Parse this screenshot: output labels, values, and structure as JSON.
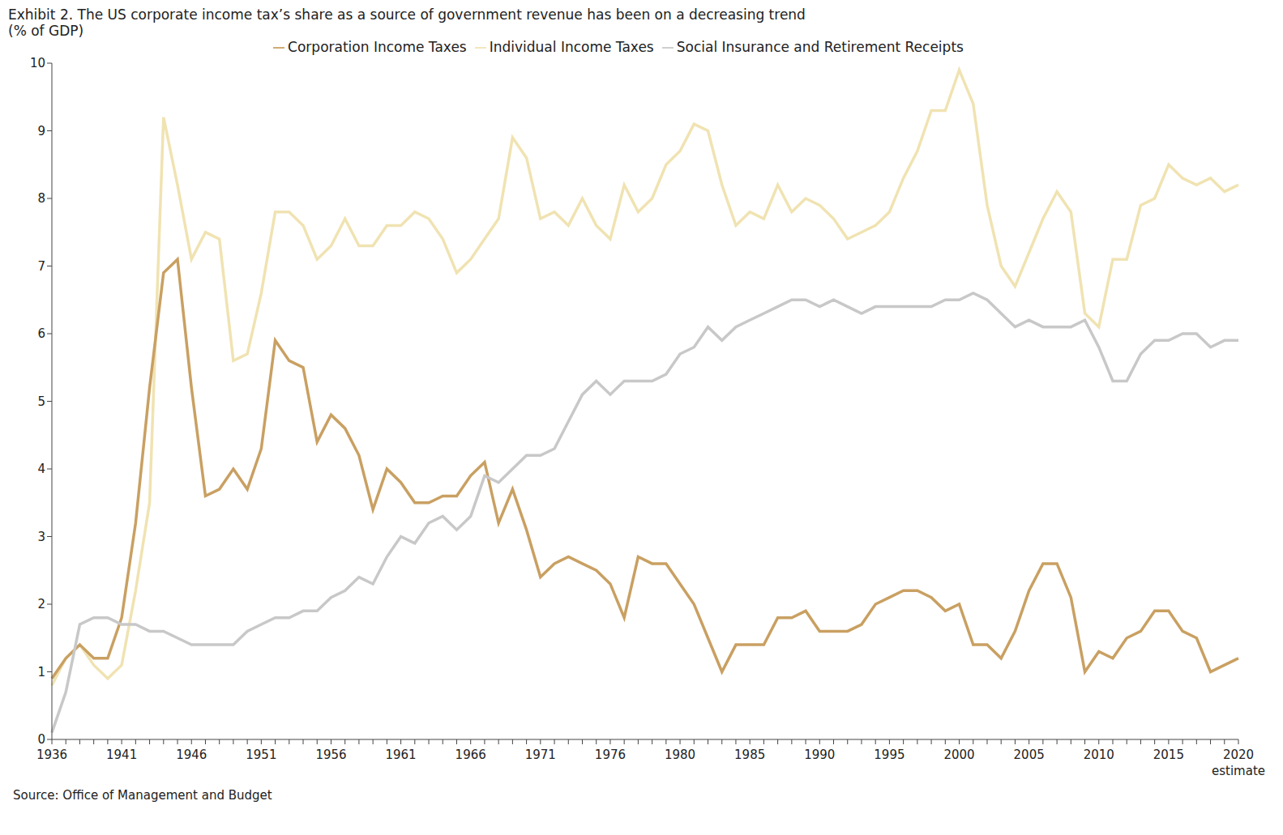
{
  "chart_data": {
    "type": "line",
    "title": "Exhibit 2. The US corporate income tax’s share as a source of government revenue has been on a decreasing trend",
    "subtitle": "(% of GDP)",
    "source": "Source: Office of Management and Budget",
    "annotations": [
      "estimate"
    ],
    "categories": [
      "1936",
      null,
      null,
      null,
      null,
      "1941",
      null,
      null,
      null,
      null,
      "1946",
      null,
      null,
      null,
      null,
      "1951",
      null,
      null,
      null,
      null,
      "1956",
      null,
      null,
      null,
      null,
      "1961",
      null,
      null,
      null,
      null,
      "1966",
      null,
      null,
      null,
      null,
      "1971",
      null,
      null,
      null,
      null,
      "1976",
      null,
      null,
      null,
      null,
      "1980",
      null,
      null,
      null,
      null,
      "1985",
      null,
      null,
      null,
      null,
      "1990",
      null,
      null,
      null,
      null,
      "1995",
      null,
      null,
      null,
      null,
      "2000",
      null,
      null,
      null,
      null,
      "2005",
      null,
      null,
      null,
      null,
      "2010",
      null,
      null,
      null,
      null,
      "2015",
      null,
      null,
      null,
      null,
      "2020"
    ],
    "series": [
      {
        "name": "Individual Income Taxes",
        "color": "#f0e3b2",
        "values": [
          0.8,
          1.2,
          1.4,
          1.1,
          0.9,
          1.1,
          2.2,
          3.5,
          9.2,
          8.2,
          7.1,
          7.5,
          7.4,
          5.6,
          5.7,
          6.6,
          7.8,
          7.8,
          7.6,
          7.1,
          7.3,
          7.7,
          7.3,
          7.3,
          7.6,
          7.6,
          7.8,
          7.7,
          7.4,
          6.9,
          7.1,
          7.4,
          7.7,
          8.9,
          8.6,
          7.7,
          7.8,
          7.6,
          8.0,
          7.6,
          7.4,
          8.2,
          7.8,
          8.0,
          8.5,
          8.7,
          9.1,
          9.0,
          8.2,
          7.6,
          7.8,
          7.7,
          8.2,
          7.8,
          8.0,
          7.9,
          7.7,
          7.4,
          7.5,
          7.6,
          7.8,
          8.3,
          8.7,
          9.3,
          9.3,
          9.9,
          9.4,
          7.9,
          7.0,
          6.7,
          7.2,
          7.7,
          8.1,
          7.8,
          6.3,
          6.1,
          7.1,
          7.1,
          7.9,
          8.0,
          8.5,
          8.3,
          8.2,
          8.3,
          8.1,
          8.2
        ]
      },
      {
        "name": "Corporation Income Taxes",
        "color": "#c9a062",
        "values": [
          0.9,
          1.2,
          1.4,
          1.2,
          1.2,
          1.8,
          3.2,
          5.2,
          6.9,
          7.1,
          5.2,
          3.6,
          3.7,
          4.0,
          3.7,
          4.3,
          5.9,
          5.6,
          5.5,
          4.4,
          4.8,
          4.6,
          4.2,
          3.4,
          4.0,
          3.8,
          3.5,
          3.5,
          3.6,
          3.6,
          3.9,
          4.1,
          3.2,
          3.7,
          3.1,
          2.4,
          2.6,
          2.7,
          2.6,
          2.5,
          2.3,
          1.8,
          2.7,
          2.6,
          2.6,
          2.3,
          2.0,
          1.5,
          1.0,
          1.4,
          1.4,
          1.4,
          1.8,
          1.8,
          1.9,
          1.6,
          1.6,
          1.6,
          1.7,
          2.0,
          2.1,
          2.2,
          2.2,
          2.1,
          1.9,
          2.0,
          1.4,
          1.4,
          1.2,
          1.6,
          2.2,
          2.6,
          2.6,
          2.1,
          1.0,
          1.3,
          1.2,
          1.5,
          1.6,
          1.9,
          1.9,
          1.6,
          1.5,
          1.0,
          1.1,
          1.2
        ]
      },
      {
        "name": "Social Insurance and Retirement Receipts",
        "color": "#c8c8c8",
        "values": [
          0.1,
          0.7,
          1.7,
          1.8,
          1.8,
          1.7,
          1.7,
          1.6,
          1.6,
          1.5,
          1.4,
          1.4,
          1.4,
          1.4,
          1.6,
          1.7,
          1.8,
          1.8,
          1.9,
          1.9,
          2.1,
          2.2,
          2.4,
          2.3,
          2.7,
          3.0,
          2.9,
          3.2,
          3.3,
          3.1,
          3.3,
          3.9,
          3.8,
          4.0,
          4.2,
          4.2,
          4.3,
          4.7,
          5.1,
          5.3,
          5.1,
          5.3,
          5.3,
          5.3,
          5.4,
          5.7,
          5.8,
          6.1,
          5.9,
          6.1,
          6.2,
          6.3,
          6.4,
          6.5,
          6.5,
          6.4,
          6.5,
          6.4,
          6.3,
          6.4,
          6.4,
          6.4,
          6.4,
          6.4,
          6.5,
          6.5,
          6.6,
          6.5,
          6.3,
          6.1,
          6.2,
          6.1,
          6.1,
          6.1,
          6.2,
          5.8,
          5.3,
          5.3,
          5.7,
          5.9,
          5.9,
          6.0,
          6.0,
          5.8,
          5.9,
          5.9
        ]
      }
    ],
    "ylim": [
      0,
      10
    ],
    "yticks": [
      0,
      1,
      2,
      3,
      4,
      5,
      6,
      7,
      8,
      9,
      10
    ],
    "grid": false,
    "legend": "top"
  }
}
